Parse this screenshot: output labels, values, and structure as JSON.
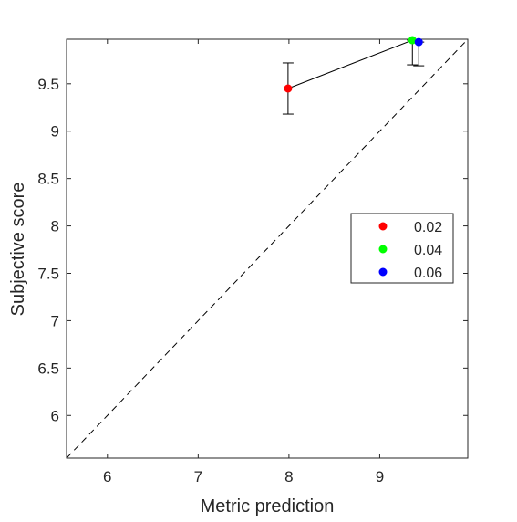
{
  "chart_data": {
    "type": "scatter",
    "xlabel": "Metric prediction",
    "ylabel": "Subjective score",
    "xlim": [
      5.55,
      9.97
    ],
    "ylim": [
      5.55,
      9.97
    ],
    "xticks": [
      6,
      7,
      8,
      9
    ],
    "yticks": [
      6,
      6.5,
      7,
      7.5,
      8,
      8.5,
      9,
      9.5
    ],
    "xtick_labels": [
      "6",
      "7",
      "8",
      "9"
    ],
    "ytick_labels": [
      "6",
      "6.5",
      "7",
      "7.5",
      "8",
      "8.5",
      "9",
      "9.5"
    ],
    "grid": false,
    "legend_position": "right",
    "identity_line": true,
    "series": [
      {
        "name": "0.02",
        "color": "#ff0000",
        "x": 7.99,
        "y": 9.45,
        "err_low": 9.18,
        "err_high": 9.72
      },
      {
        "name": "0.04",
        "color": "#00ff00",
        "x": 9.36,
        "y": 9.96,
        "err_low": 9.7,
        "err_high": 9.96
      },
      {
        "name": "0.06",
        "color": "#0000ff",
        "x": 9.43,
        "y": 9.94,
        "err_low": 9.69,
        "err_high": 9.94
      }
    ]
  }
}
